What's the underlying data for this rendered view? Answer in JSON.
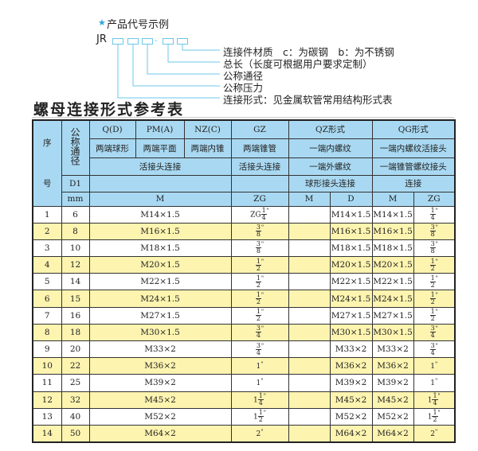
{
  "example": {
    "title": "产品代号示例",
    "prefix": "JR",
    "dash": "-",
    "labels": [
      "连接件材质　c：为碳钢　b：为不锈钢",
      "总长（长度可根据用户要求定制）",
      "公称通径",
      "公称压力",
      "连接形式：见金属软管常用结构形式表"
    ]
  },
  "table_title": "螺母连接形式参考表",
  "colors": {
    "header": "#a9d9f2",
    "alt_row": "#fdf4b0",
    "line": "#6cc7e8"
  },
  "header": {
    "seq": "序",
    "seq2": "号",
    "nominal": "公称通径",
    "r1": [
      "Q(D)",
      "PM(A)",
      "NZ(C)",
      "GZ",
      "QZ形式",
      "QG形式"
    ],
    "r2": [
      "两端球形",
      "两端平面",
      "两端内锥",
      "两端锥管",
      "一端内螺纹",
      "一端内螺纹活接头"
    ],
    "r3": [
      "活接头连接",
      "活接头连接",
      "一端外螺纹",
      "一端锥管螺纹接头"
    ],
    "r4": [
      "D1",
      "",
      "",
      "球形接头连接",
      "连接"
    ],
    "r5": [
      "mm",
      "M",
      "ZG",
      "M",
      "D",
      "M",
      "ZG"
    ]
  },
  "rows": [
    {
      "no": "1",
      "d1": "6",
      "m": "M14×1.5",
      "zg": {
        "pre": "ZG",
        "num": "1",
        "den": "4"
      },
      "qzm": "",
      "qzd": "M14×1.5",
      "qgm": "M14×1.5",
      "qgzg": {
        "pre": "",
        "num": "1",
        "den": "4"
      }
    },
    {
      "no": "2",
      "d1": "8",
      "m": "M16×1.5",
      "zg": {
        "pre": "",
        "num": "3",
        "den": "8"
      },
      "qzm": "",
      "qzd": "M16×1.5",
      "qgm": "M16×1.5",
      "qgzg": {
        "pre": "",
        "num": "3",
        "den": "8"
      }
    },
    {
      "no": "3",
      "d1": "10",
      "m": "M18×1.5",
      "zg": {
        "pre": "",
        "num": "3",
        "den": "8"
      },
      "qzm": "",
      "qzd": "M18×1.5",
      "qgm": "M18×1.5",
      "qgzg": {
        "pre": "",
        "num": "3",
        "den": "8"
      }
    },
    {
      "no": "4",
      "d1": "12",
      "m": "M20×1.5",
      "zg": {
        "pre": "",
        "num": "1",
        "den": "2"
      },
      "qzm": "",
      "qzd": "M20×1.5",
      "qgm": "M20×1.5",
      "qgzg": {
        "pre": "",
        "num": "1",
        "den": "2"
      }
    },
    {
      "no": "5",
      "d1": "14",
      "m": "M22×1.5",
      "zg": {
        "pre": "",
        "num": "1",
        "den": "2"
      },
      "qzm": "",
      "qzd": "M22×1.5",
      "qgm": "M22×1.5",
      "qgzg": {
        "pre": "",
        "num": "1",
        "den": "2"
      }
    },
    {
      "no": "6",
      "d1": "15",
      "m": "M24×1.5",
      "zg": {
        "pre": "",
        "num": "1",
        "den": "2"
      },
      "qzm": "",
      "qzd": "M24×1.5",
      "qgm": "M24×1.5",
      "qgzg": {
        "pre": "",
        "num": "1",
        "den": "2"
      }
    },
    {
      "no": "7",
      "d1": "16",
      "m": "M27×1.5",
      "zg": {
        "pre": "",
        "num": "1",
        "den": "2"
      },
      "qzm": "",
      "qzd": "M27×1.5",
      "qgm": "M27×1.5",
      "qgzg": {
        "pre": "",
        "num": "1",
        "den": "2"
      }
    },
    {
      "no": "8",
      "d1": "18",
      "m": "M30×1.5",
      "zg": {
        "pre": "",
        "num": "3",
        "den": "4"
      },
      "qzm": "",
      "qzd": "M30×1.5",
      "qgm": "M30×1.5",
      "qgzg": {
        "pre": "",
        "num": "3",
        "den": "4"
      }
    },
    {
      "no": "9",
      "d1": "20",
      "m": "M33×2",
      "zg": {
        "pre": "",
        "num": "3",
        "den": "4"
      },
      "qzm": "",
      "qzd": "M33×2",
      "qgm": "M33×2",
      "qgzg": {
        "pre": "",
        "num": "3",
        "den": "4"
      }
    },
    {
      "no": "10",
      "d1": "22",
      "m": "M36×2",
      "zg": {
        "pre": "1",
        "num": "",
        "den": ""
      },
      "qzm": "",
      "qzd": "M36×2",
      "qgm": "M36×2",
      "qgzg": {
        "pre": "1",
        "num": "",
        "den": ""
      }
    },
    {
      "no": "11",
      "d1": "25",
      "m": "M39×2",
      "zg": {
        "pre": "1",
        "num": "",
        "den": ""
      },
      "qzm": "",
      "qzd": "M39×2",
      "qgm": "M39×2",
      "qgzg": {
        "pre": "1",
        "num": "",
        "den": ""
      }
    },
    {
      "no": "12",
      "d1": "32",
      "m": "M45×2",
      "zg": {
        "pre": "1",
        "num": "1",
        "den": "4"
      },
      "qzm": "",
      "qzd": "M45×2",
      "qgm": "M45×2",
      "qgzg": {
        "pre": "1",
        "num": "1",
        "den": "4"
      }
    },
    {
      "no": "13",
      "d1": "40",
      "m": "M52×2",
      "zg": {
        "pre": "1",
        "num": "1",
        "den": "2"
      },
      "qzm": "",
      "qzd": "M52×2",
      "qgm": "M52×2",
      "qgzg": {
        "pre": "1",
        "num": "1",
        "den": "2"
      }
    },
    {
      "no": "14",
      "d1": "50",
      "m": "M64×2",
      "zg": {
        "pre": "2",
        "num": "",
        "den": ""
      },
      "qzm": "",
      "qzd": "M64×2",
      "qgm": "M64×2",
      "qgzg": {
        "pre": "2",
        "num": "",
        "den": ""
      }
    }
  ],
  "inch_mark": "\""
}
